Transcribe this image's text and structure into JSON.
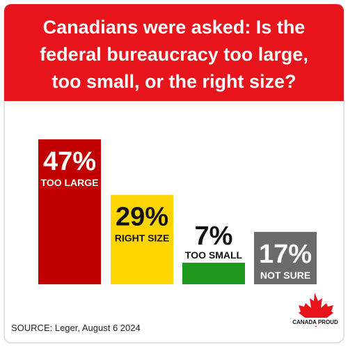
{
  "chart_data": {
    "type": "bar",
    "title": [
      "Canadians were asked: Is the",
      "federal bureaucracy too large,",
      "too small, or the right size?"
    ],
    "categories": [
      "TOO LARGE",
      "RIGHT SIZE",
      "TOO SMALL",
      "NOT SURE"
    ],
    "values": [
      47,
      29,
      7,
      17
    ],
    "value_labels": [
      "47%",
      "29%",
      "7%",
      "17%"
    ],
    "colors": [
      "#c00000",
      "#ffd500",
      "#1f9a1f",
      "#6b6b6b"
    ],
    "source": "SOURCE: Leger, August 6 2024",
    "logo": "CANADA PROUD"
  }
}
